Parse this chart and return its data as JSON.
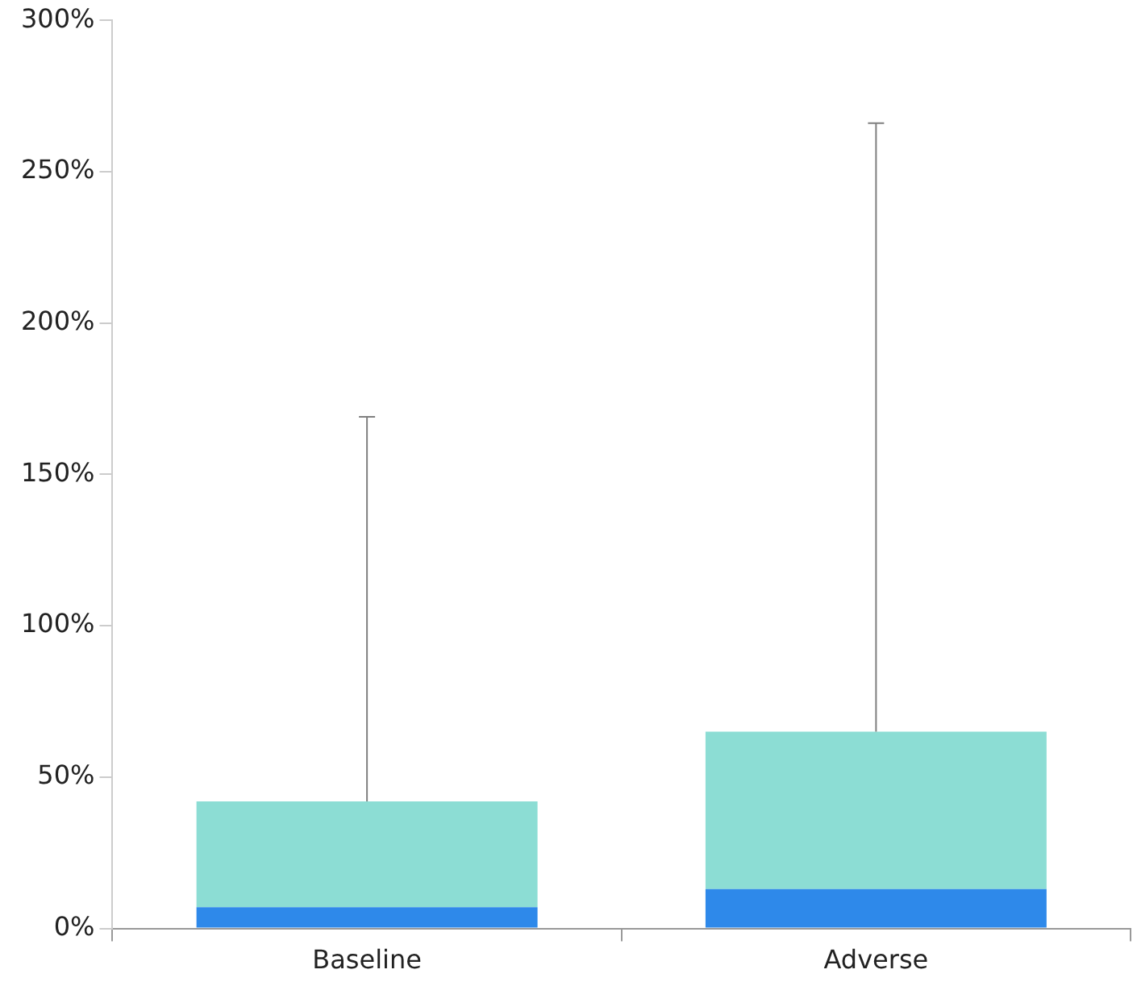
{
  "chart_data": {
    "type": "bar",
    "stacked": true,
    "categories": [
      "Baseline",
      "Adverse"
    ],
    "series": [
      {
        "color": "#2e89ea",
        "values": [
          7,
          13
        ]
      },
      {
        "color": "#8cddd4",
        "values": [
          35,
          52
        ],
        "errors": [
          [
            42,
            169
          ],
          [
            65,
            266
          ]
        ]
      }
    ],
    "ylim": [
      0,
      300
    ],
    "yticks": [
      {
        "value": 0,
        "label": "0%"
      },
      {
        "value": 50,
        "label": "50%"
      },
      {
        "value": 100,
        "label": "100%"
      },
      {
        "value": 150,
        "label": "150%"
      },
      {
        "value": 200,
        "label": "200%"
      },
      {
        "value": 250,
        "label": "250%"
      },
      {
        "value": 300,
        "label": "300%"
      }
    ],
    "grid": false,
    "legend": false
  }
}
